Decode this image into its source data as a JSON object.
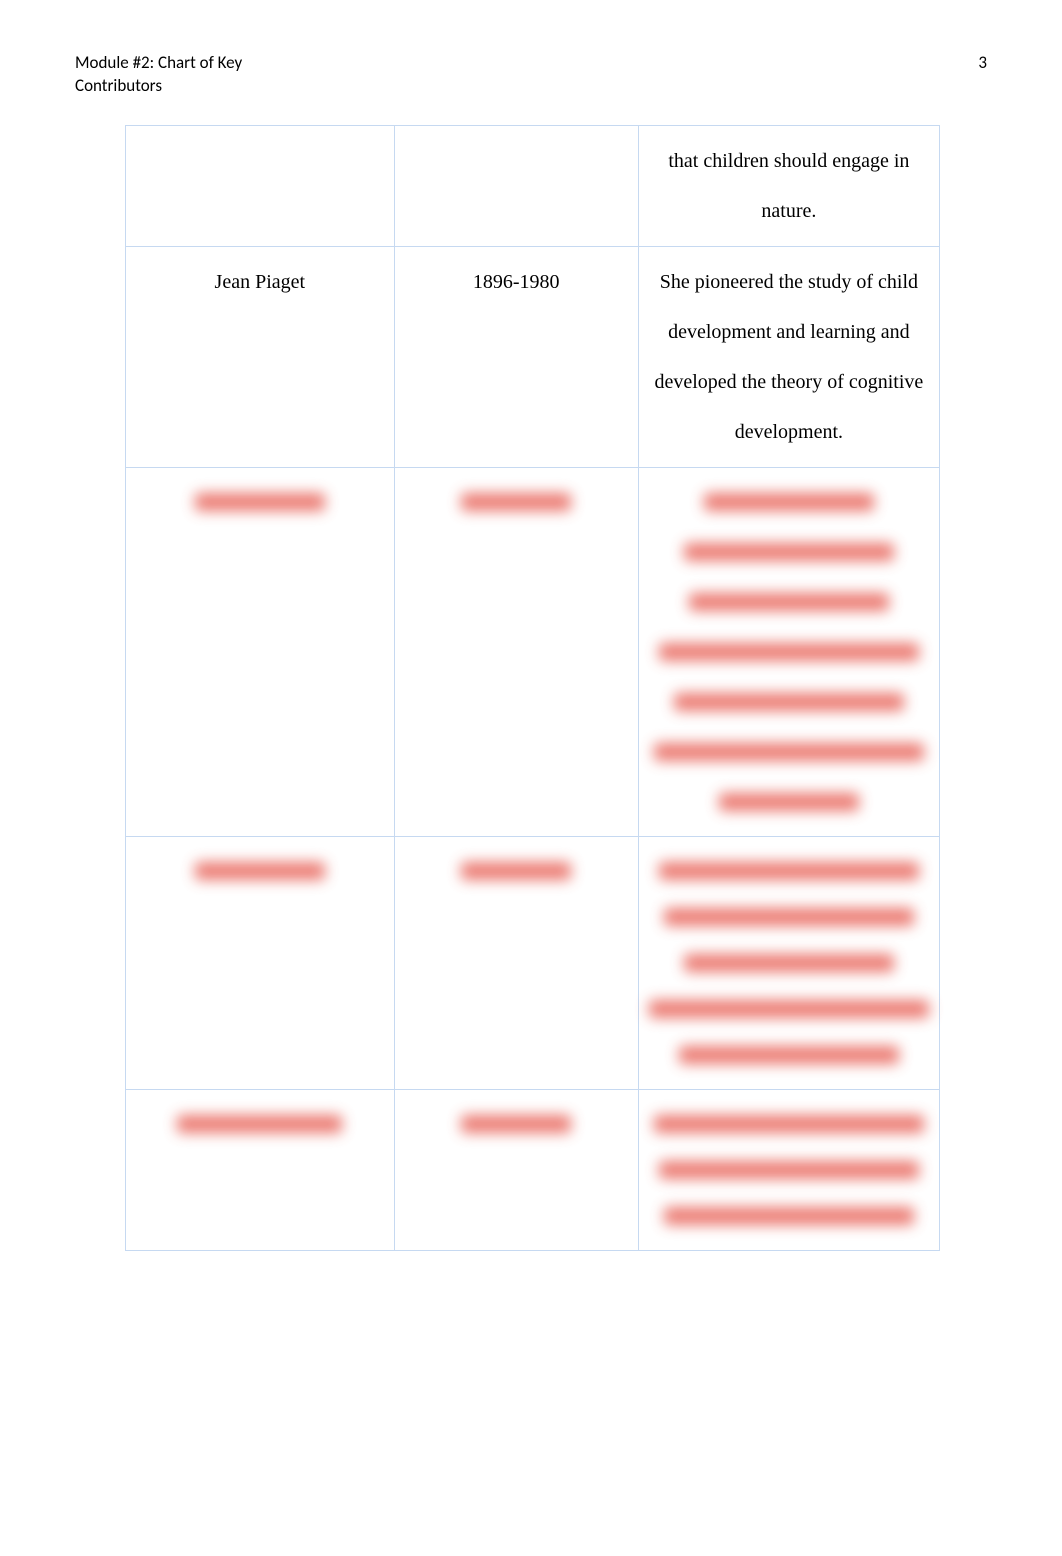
{
  "header": {
    "title_line1": "Module #2: Chart of Key",
    "title_line2": "Contributors",
    "page_number": "3"
  },
  "table": {
    "columns": [
      "name",
      "years",
      "description"
    ],
    "rows": [
      {
        "name": "",
        "years": "",
        "description": "that children should engage in nature.",
        "blurred": false
      },
      {
        "name": "Jean Piaget",
        "years": "1896-1980",
        "description": "She pioneered the study of child development and learning and developed the theory of cognitive development.",
        "blurred": false
      },
      {
        "name_blur_width": 130,
        "years_blur_width": 110,
        "desc_blur_widths": [
          170,
          210,
          200,
          260,
          230,
          270,
          140
        ],
        "blurred": true
      },
      {
        "name_blur_width": 130,
        "years_blur_width": 110,
        "desc_blur_widths": [
          260,
          250,
          210,
          280,
          220
        ],
        "blurred": true
      },
      {
        "name_blur_width": 165,
        "years_blur_width": 110,
        "desc_blur_widths": [
          270,
          260,
          250
        ],
        "blurred": true
      }
    ]
  },
  "colors": {
    "border": "#c6d9f1",
    "text": "#000000",
    "blur": "#e8645a",
    "background": "#ffffff"
  }
}
